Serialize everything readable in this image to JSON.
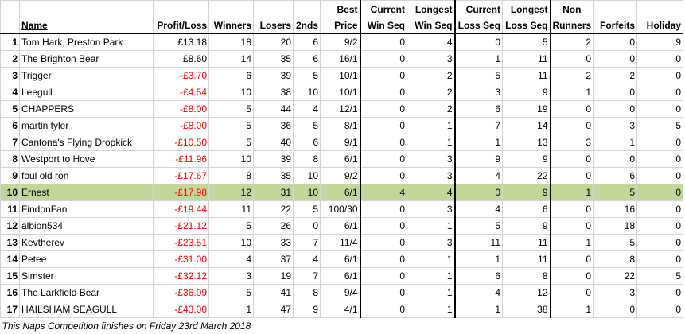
{
  "headers": {
    "name": "Name",
    "profit": "Profit/Loss",
    "winners": "Winners",
    "losers": "Losers",
    "seconds": "2nds",
    "best_price": [
      "Best",
      "Price"
    ],
    "current_win": [
      "Current",
      "Win Seq"
    ],
    "longest_win": [
      "Longest",
      "Win Seq"
    ],
    "current_loss": [
      "Current",
      "Loss Seq"
    ],
    "longest_loss": [
      "Longest",
      "Loss Seq"
    ],
    "non_runners": [
      "Non",
      "Runners"
    ],
    "forfeits": "Forfeits",
    "holiday": "Holiday"
  },
  "rows": [
    {
      "rank": "1",
      "name": "Tom Hark, Preston Park",
      "profit": "£13.18",
      "winners": "18",
      "losers": "20",
      "seconds": "6",
      "best_price": "9/2",
      "current_win": "0",
      "longest_win": "4",
      "current_loss": "0",
      "longest_loss": "5",
      "non_runners": "2",
      "forfeits": "0",
      "holiday": "9"
    },
    {
      "rank": "2",
      "name": "The Brighton Bear",
      "profit": "£8.60",
      "winners": "14",
      "losers": "35",
      "seconds": "6",
      "best_price": "16/1",
      "current_win": "0",
      "longest_win": "3",
      "current_loss": "1",
      "longest_loss": "11",
      "non_runners": "0",
      "forfeits": "0",
      "holiday": "0"
    },
    {
      "rank": "3",
      "name": "Trigger",
      "profit": "-£3.70",
      "winners": "6",
      "losers": "39",
      "seconds": "5",
      "best_price": "10/1",
      "current_win": "0",
      "longest_win": "2",
      "current_loss": "5",
      "longest_loss": "11",
      "non_runners": "2",
      "forfeits": "2",
      "holiday": "0"
    },
    {
      "rank": "4",
      "name": "Leegull",
      "profit": "-£4.54",
      "winners": "10",
      "losers": "38",
      "seconds": "10",
      "best_price": "10/1",
      "current_win": "0",
      "longest_win": "2",
      "current_loss": "3",
      "longest_loss": "9",
      "non_runners": "1",
      "forfeits": "0",
      "holiday": "0"
    },
    {
      "rank": "5",
      "name": "CHAPPERS",
      "profit": "-£8.00",
      "winners": "5",
      "losers": "44",
      "seconds": "4",
      "best_price": "12/1",
      "current_win": "0",
      "longest_win": "2",
      "current_loss": "6",
      "longest_loss": "19",
      "non_runners": "0",
      "forfeits": "0",
      "holiday": "0"
    },
    {
      "rank": "6",
      "name": "martin tyler",
      "profit": "-£8.00",
      "winners": "5",
      "losers": "36",
      "seconds": "5",
      "best_price": "8/1",
      "current_win": "0",
      "longest_win": "1",
      "current_loss": "7",
      "longest_loss": "14",
      "non_runners": "0",
      "forfeits": "3",
      "holiday": "5"
    },
    {
      "rank": "7",
      "name": "Cantona's Flying Dropkick",
      "profit": "-£10.50",
      "winners": "5",
      "losers": "40",
      "seconds": "6",
      "best_price": "9/1",
      "current_win": "0",
      "longest_win": "1",
      "current_loss": "1",
      "longest_loss": "13",
      "non_runners": "3",
      "forfeits": "1",
      "holiday": "0"
    },
    {
      "rank": "8",
      "name": "Westport to Hove",
      "profit": "-£11.96",
      "winners": "10",
      "losers": "39",
      "seconds": "8",
      "best_price": "6/1",
      "current_win": "0",
      "longest_win": "3",
      "current_loss": "9",
      "longest_loss": "9",
      "non_runners": "0",
      "forfeits": "0",
      "holiday": "0"
    },
    {
      "rank": "9",
      "name": "foul old ron",
      "profit": "-£17.67",
      "winners": "8",
      "losers": "35",
      "seconds": "10",
      "best_price": "9/2",
      "current_win": "0",
      "longest_win": "3",
      "current_loss": "4",
      "longest_loss": "22",
      "non_runners": "0",
      "forfeits": "6",
      "holiday": "0"
    },
    {
      "rank": "10",
      "name": "Ernest",
      "profit": "-£17.98",
      "winners": "12",
      "losers": "31",
      "seconds": "10",
      "best_price": "6/1",
      "current_win": "4",
      "longest_win": "4",
      "current_loss": "0",
      "longest_loss": "9",
      "non_runners": "1",
      "forfeits": "5",
      "holiday": "0",
      "highlight": true
    },
    {
      "rank": "11",
      "name": "FindonFan",
      "profit": "-£19.44",
      "winners": "11",
      "losers": "22",
      "seconds": "5",
      "best_price": "100/30",
      "current_win": "0",
      "longest_win": "3",
      "current_loss": "4",
      "longest_loss": "6",
      "non_runners": "0",
      "forfeits": "16",
      "holiday": "0"
    },
    {
      "rank": "12",
      "name": "albion534",
      "profit": "-£21.12",
      "winners": "5",
      "losers": "26",
      "seconds": "0",
      "best_price": "6/1",
      "current_win": "0",
      "longest_win": "1",
      "current_loss": "5",
      "longest_loss": "9",
      "non_runners": "0",
      "forfeits": "18",
      "holiday": "0"
    },
    {
      "rank": "13",
      "name": "Kevtherev",
      "profit": "-£23.51",
      "winners": "10",
      "losers": "33",
      "seconds": "7",
      "best_price": "11/4",
      "current_win": "0",
      "longest_win": "3",
      "current_loss": "11",
      "longest_loss": "11",
      "non_runners": "1",
      "forfeits": "5",
      "holiday": "0"
    },
    {
      "rank": "14",
      "name": "Petee",
      "profit": "-£31.00",
      "winners": "4",
      "losers": "37",
      "seconds": "4",
      "best_price": "6/1",
      "current_win": "0",
      "longest_win": "1",
      "current_loss": "1",
      "longest_loss": "11",
      "non_runners": "0",
      "forfeits": "8",
      "holiday": "0"
    },
    {
      "rank": "15",
      "name": "Simster",
      "profit": "-£32.12",
      "winners": "3",
      "losers": "19",
      "seconds": "7",
      "best_price": "6/1",
      "current_win": "0",
      "longest_win": "1",
      "current_loss": "6",
      "longest_loss": "8",
      "non_runners": "0",
      "forfeits": "22",
      "holiday": "5"
    },
    {
      "rank": "16",
      "name": "The Larkfield Bear",
      "profit": "-£36.09",
      "winners": "5",
      "losers": "41",
      "seconds": "8",
      "best_price": "9/4",
      "current_win": "0",
      "longest_win": "1",
      "current_loss": "4",
      "longest_loss": "12",
      "non_runners": "0",
      "forfeits": "3",
      "holiday": "0"
    },
    {
      "rank": "17",
      "name": "HAILSHAM SEAGULL",
      "profit": "-£43.00",
      "winners": "1",
      "losers": "47",
      "seconds": "9",
      "best_price": "4/1",
      "current_win": "0",
      "longest_win": "1",
      "current_loss": "1",
      "longest_loss": "38",
      "non_runners": "1",
      "forfeits": "0",
      "holiday": "0"
    }
  ],
  "footer": "This Naps Competition finishes on Friday 23rd March 2018",
  "colors": {
    "negative": "#ff0000",
    "highlight_row": "#c4d79b",
    "grid": "#d4d4d4"
  }
}
